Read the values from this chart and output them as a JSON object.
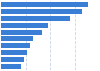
{
  "values": [
    11500,
    10800,
    9200,
    6200,
    5500,
    4200,
    3800,
    3400,
    3000,
    2600
  ],
  "bar_color": "#3a7fd5",
  "background_color": "#ffffff",
  "grid_color": "#c8d6e8",
  "xlim": [
    0,
    13000
  ],
  "grid_lines": [
    3250,
    6500,
    9750,
    13000
  ]
}
